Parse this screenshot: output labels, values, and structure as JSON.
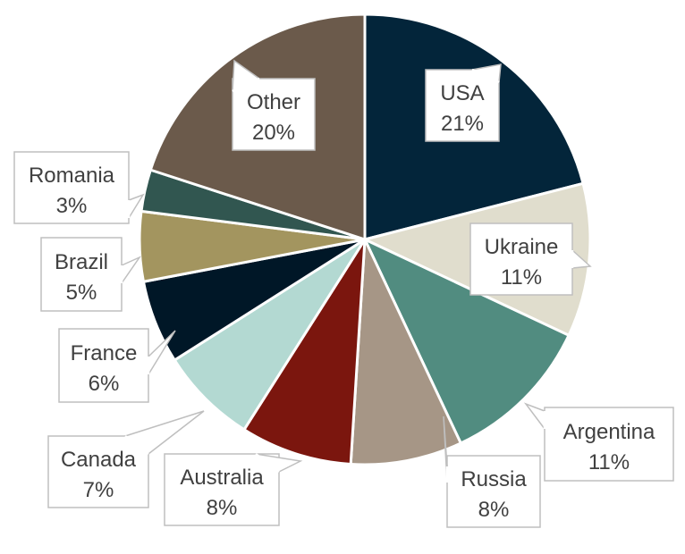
{
  "chart_data": {
    "type": "pie",
    "slices": [
      {
        "label": "USA",
        "pct_label": "21%",
        "value": 21,
        "color": "#03253a"
      },
      {
        "label": "Ukraine",
        "pct_label": "11%",
        "value": 11,
        "color": "#e0ddcd"
      },
      {
        "label": "Argentina",
        "pct_label": "11%",
        "value": 11,
        "color": "#518c80"
      },
      {
        "label": "Russia",
        "pct_label": "8%",
        "value": 8,
        "color": "#a69686"
      },
      {
        "label": "Australia",
        "pct_label": "8%",
        "value": 8,
        "color": "#7b160e"
      },
      {
        "label": "Canada",
        "pct_label": "7%",
        "value": 7,
        "color": "#b3d9d2"
      },
      {
        "label": "France",
        "pct_label": "6%",
        "value": 6,
        "color": "#001727"
      },
      {
        "label": "Brazil",
        "pct_label": "5%",
        "value": 5,
        "color": "#a3955f"
      },
      {
        "label": "Romania",
        "pct_label": "3%",
        "value": 3,
        "color": "#315650"
      },
      {
        "label": "Other",
        "pct_label": "20%",
        "value": 20,
        "color": "#6b5a4b"
      }
    ]
  }
}
